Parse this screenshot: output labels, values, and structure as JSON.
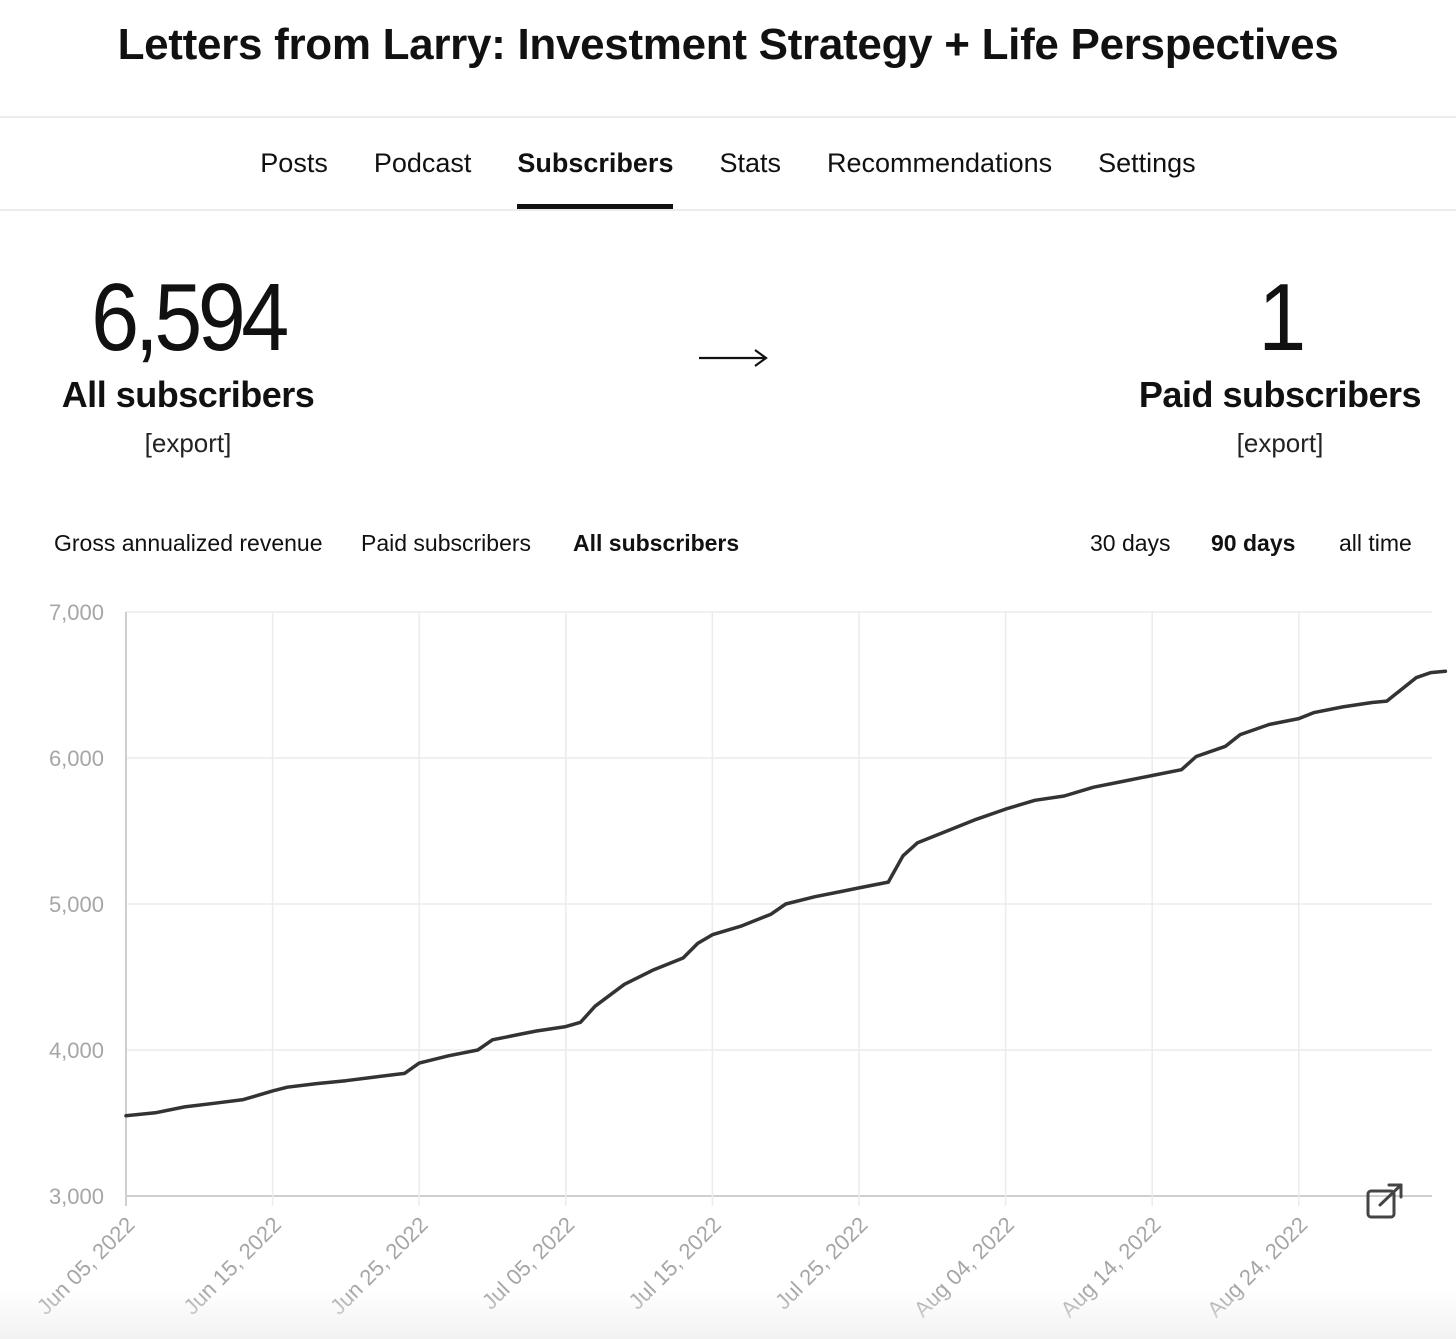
{
  "publication": {
    "title": "Letters from Larry: Investment Strategy + Life Perspectives"
  },
  "nav": {
    "tabs": [
      {
        "label": "Posts",
        "active": false
      },
      {
        "label": "Podcast",
        "active": false
      },
      {
        "label": "Subscribers",
        "active": true
      },
      {
        "label": "Stats",
        "active": false
      },
      {
        "label": "Recommendations",
        "active": false
      },
      {
        "label": "Settings",
        "active": false
      }
    ]
  },
  "stats": {
    "all": {
      "value": "6,594",
      "label": "All subscribers",
      "export": "[export]"
    },
    "paid": {
      "value": "1",
      "label": "Paid subscribers",
      "export": "[export]"
    },
    "arrow_icon": "right-arrow-icon"
  },
  "metric_tabs": [
    {
      "label": "Gross annualized revenue",
      "active": false
    },
    {
      "label": "Paid subscribers",
      "active": false
    },
    {
      "label": "All subscribers",
      "active": true
    }
  ],
  "range_tabs": [
    {
      "label": "30 days",
      "active": false
    },
    {
      "label": "90 days",
      "active": true
    },
    {
      "label": "all time",
      "active": false
    }
  ],
  "chart_data": {
    "type": "line",
    "title": "",
    "xlabel": "",
    "ylabel": "",
    "ylim": [
      3000,
      7000
    ],
    "yticks": [
      "3,000",
      "4,000",
      "5,000",
      "6,000",
      "7,000"
    ],
    "xticks": [
      "Jun 05, 2022",
      "Jun 15, 2022",
      "Jun 25, 2022",
      "Jul 05, 2022",
      "Jul 15, 2022",
      "Jul 25, 2022",
      "Aug 04, 2022",
      "Aug 14, 2022",
      "Aug 24, 2022"
    ],
    "grid": true,
    "legend": "none",
    "line_color": "#333333",
    "series": [
      {
        "values": [
          {
            "x": "2022-06-05",
            "y": 3550
          },
          {
            "x": "2022-06-07",
            "y": 3570
          },
          {
            "x": "2022-06-09",
            "y": 3610
          },
          {
            "x": "2022-06-11",
            "y": 3635
          },
          {
            "x": "2022-06-13",
            "y": 3660
          },
          {
            "x": "2022-06-14",
            "y": 3690
          },
          {
            "x": "2022-06-15",
            "y": 3720
          },
          {
            "x": "2022-06-16",
            "y": 3745
          },
          {
            "x": "2022-06-18",
            "y": 3770
          },
          {
            "x": "2022-06-20",
            "y": 3790
          },
          {
            "x": "2022-06-22",
            "y": 3815
          },
          {
            "x": "2022-06-24",
            "y": 3840
          },
          {
            "x": "2022-06-25",
            "y": 3910
          },
          {
            "x": "2022-06-27",
            "y": 3960
          },
          {
            "x": "2022-06-29",
            "y": 4000
          },
          {
            "x": "2022-06-30",
            "y": 4070
          },
          {
            "x": "2022-07-02",
            "y": 4110
          },
          {
            "x": "2022-07-03",
            "y": 4130
          },
          {
            "x": "2022-07-05",
            "y": 4160
          },
          {
            "x": "2022-07-06",
            "y": 4190
          },
          {
            "x": "2022-07-07",
            "y": 4300
          },
          {
            "x": "2022-07-09",
            "y": 4450
          },
          {
            "x": "2022-07-11",
            "y": 4550
          },
          {
            "x": "2022-07-13",
            "y": 4630
          },
          {
            "x": "2022-07-14",
            "y": 4730
          },
          {
            "x": "2022-07-15",
            "y": 4790
          },
          {
            "x": "2022-07-17",
            "y": 4850
          },
          {
            "x": "2022-07-19",
            "y": 4930
          },
          {
            "x": "2022-07-20",
            "y": 5000
          },
          {
            "x": "2022-07-22",
            "y": 5050
          },
          {
            "x": "2022-07-24",
            "y": 5090
          },
          {
            "x": "2022-07-25",
            "y": 5110
          },
          {
            "x": "2022-07-27",
            "y": 5150
          },
          {
            "x": "2022-07-28",
            "y": 5330
          },
          {
            "x": "2022-07-29",
            "y": 5420
          },
          {
            "x": "2022-07-31",
            "y": 5500
          },
          {
            "x": "2022-08-02",
            "y": 5580
          },
          {
            "x": "2022-08-04",
            "y": 5650
          },
          {
            "x": "2022-08-06",
            "y": 5710
          },
          {
            "x": "2022-08-08",
            "y": 5740
          },
          {
            "x": "2022-08-10",
            "y": 5800
          },
          {
            "x": "2022-08-12",
            "y": 5840
          },
          {
            "x": "2022-08-14",
            "y": 5880
          },
          {
            "x": "2022-08-16",
            "y": 5920
          },
          {
            "x": "2022-08-17",
            "y": 6010
          },
          {
            "x": "2022-08-19",
            "y": 6080
          },
          {
            "x": "2022-08-20",
            "y": 6160
          },
          {
            "x": "2022-08-22",
            "y": 6230
          },
          {
            "x": "2022-08-24",
            "y": 6270
          },
          {
            "x": "2022-08-25",
            "y": 6310
          },
          {
            "x": "2022-08-27",
            "y": 6350
          },
          {
            "x": "2022-08-29",
            "y": 6380
          },
          {
            "x": "2022-08-30",
            "y": 6390
          },
          {
            "x": "2022-09-01",
            "y": 6550
          },
          {
            "x": "2022-09-02",
            "y": 6585
          },
          {
            "x": "2022-09-03",
            "y": 6594
          }
        ]
      }
    ]
  },
  "chart_controls": {
    "expand_icon": "open-in-new-icon"
  }
}
